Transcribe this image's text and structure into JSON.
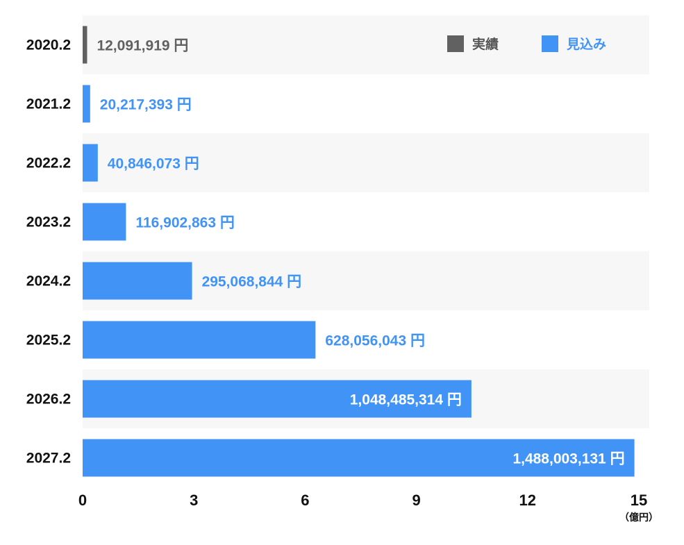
{
  "chart_data": {
    "type": "bar",
    "orientation": "horizontal",
    "categories": [
      "2020.2",
      "2021.2",
      "2022.2",
      "2023.2",
      "2024.2",
      "2025.2",
      "2026.2",
      "2027.2"
    ],
    "values": [
      12091919,
      20217393,
      40846073,
      116902863,
      295068844,
      628056043,
      1048485314,
      1488003131
    ],
    "value_labels": [
      "12,091,919 円",
      "20,217,393 円",
      "40,846,073 円",
      "116,902,863 円",
      "295,068,844 円",
      "628,056,043 円",
      "1,048,485,314 円",
      "1,488,003,131 円"
    ],
    "status": [
      "actual",
      "forecast",
      "forecast",
      "forecast",
      "forecast",
      "forecast",
      "forecast",
      "forecast"
    ],
    "x_ticks": [
      "0",
      "3",
      "6",
      "9",
      "12",
      "15"
    ],
    "x_tick_values": [
      0,
      300000000,
      600000000,
      900000000,
      1200000000,
      1500000000
    ],
    "xlim": [
      0,
      1500000000
    ],
    "xlabel": "（億円）",
    "legend": {
      "placement": "top-right",
      "items": [
        {
          "key": "actual",
          "label": "実績",
          "color": "#616161"
        },
        {
          "key": "forecast",
          "label": "見込み",
          "color": "#4193f5"
        }
      ]
    },
    "colors": {
      "actual": "#616161",
      "forecast": "#4193f5",
      "label_forecast": "#4193f5",
      "label_inside": "#ffffff",
      "label_actual": "#616161",
      "stripe": "#f7f7f7"
    }
  }
}
